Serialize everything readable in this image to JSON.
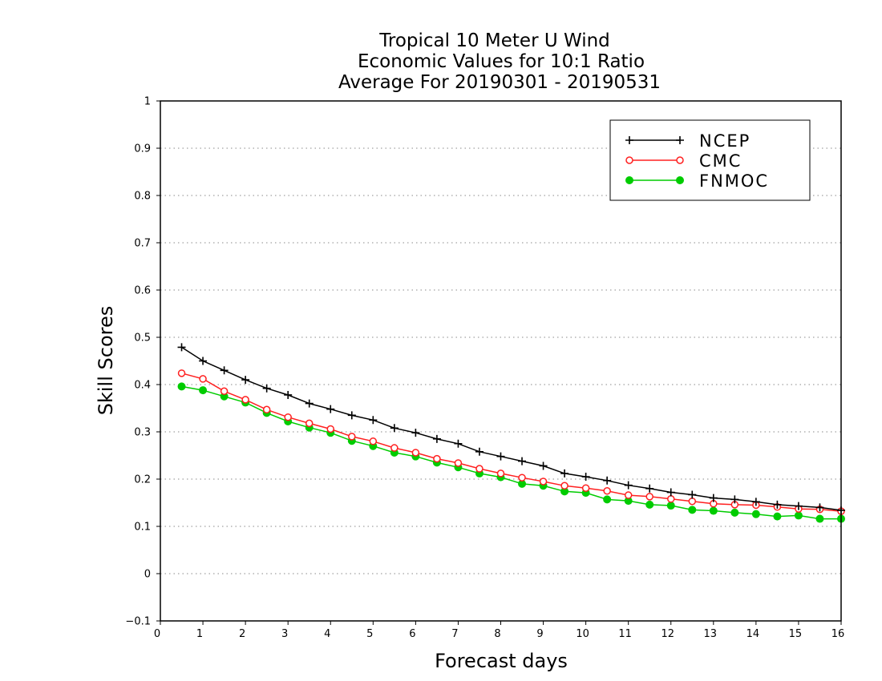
{
  "chart_data": {
    "type": "line",
    "title": [
      "Tropical 10 Meter U Wind",
      "Economic Values for 10:1 Ratio",
      "Average For 20190301 - 20190531"
    ],
    "xlabel": "Forecast days",
    "ylabel": "Skill Scores",
    "xlim": [
      0,
      16
    ],
    "ylim": [
      -0.1,
      1
    ],
    "xticks": [
      0,
      1,
      2,
      3,
      4,
      5,
      6,
      7,
      8,
      9,
      10,
      11,
      12,
      13,
      14,
      15,
      16
    ],
    "yticks": [
      -0.1,
      0,
      0.1,
      0.2,
      0.3,
      0.4,
      0.5,
      0.6,
      0.7,
      0.8,
      0.9,
      1
    ],
    "ytick_labels": [
      "−0.1",
      "0",
      "0.1",
      "0.2",
      "0.3",
      "0.4",
      "0.5",
      "0.6",
      "0.7",
      "0.8",
      "0.9",
      "1"
    ],
    "grid": "horizontal dotted",
    "legend_position": "top-right",
    "x": [
      0.5,
      1,
      1.5,
      2,
      2.5,
      3,
      3.5,
      4,
      4.5,
      5,
      5.5,
      6,
      6.5,
      7,
      7.5,
      8,
      8.5,
      9,
      9.5,
      10,
      10.5,
      11,
      11.5,
      12,
      12.5,
      13,
      13.5,
      14,
      14.5,
      15,
      15.5,
      16
    ],
    "series": [
      {
        "name": "NCEP",
        "color": "#000000",
        "marker": "plus",
        "values": [
          0.479,
          0.45,
          0.43,
          0.41,
          0.392,
          0.378,
          0.36,
          0.348,
          0.335,
          0.325,
          0.308,
          0.298,
          0.285,
          0.275,
          0.258,
          0.248,
          0.238,
          0.228,
          0.212,
          0.205,
          0.197,
          0.187,
          0.18,
          0.172,
          0.167,
          0.16,
          0.157,
          0.152,
          0.146,
          0.143,
          0.14,
          0.134
        ]
      },
      {
        "name": "CMC",
        "color": "#ff2020",
        "marker": "open-circle",
        "values": [
          0.424,
          0.412,
          0.386,
          0.368,
          0.347,
          0.331,
          0.318,
          0.306,
          0.29,
          0.28,
          0.266,
          0.256,
          0.243,
          0.234,
          0.222,
          0.212,
          0.203,
          0.195,
          0.186,
          0.181,
          0.175,
          0.166,
          0.163,
          0.158,
          0.153,
          0.148,
          0.146,
          0.145,
          0.141,
          0.137,
          0.136,
          0.132
        ]
      },
      {
        "name": "FNMOC",
        "color": "#00cc00",
        "marker": "filled-circle",
        "values": [
          0.396,
          0.388,
          0.375,
          0.362,
          0.34,
          0.322,
          0.309,
          0.298,
          0.281,
          0.27,
          0.256,
          0.248,
          0.235,
          0.225,
          0.212,
          0.204,
          0.19,
          0.186,
          0.174,
          0.171,
          0.157,
          0.154,
          0.146,
          0.144,
          0.135,
          0.133,
          0.129,
          0.126,
          0.121,
          0.123,
          0.116,
          0.116
        ]
      }
    ]
  }
}
